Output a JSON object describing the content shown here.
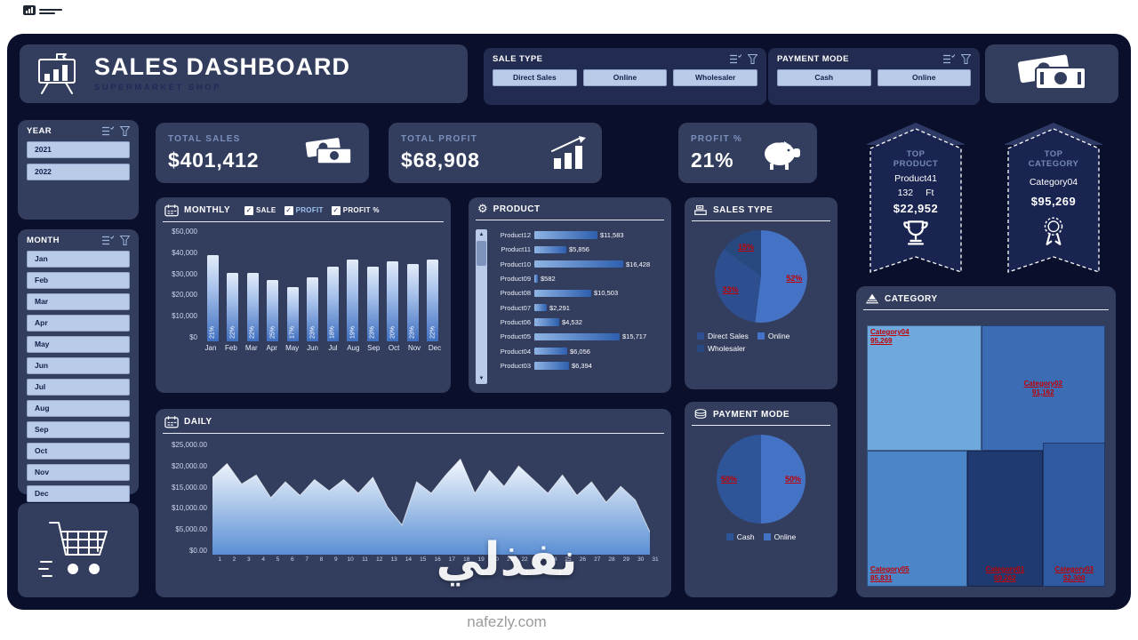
{
  "page": {
    "watermark_main": "نفذلي",
    "watermark_sub": "nafezly.com"
  },
  "header": {
    "title": "SALES DASHBOARD",
    "subtitle": "SUPERMARKET SHOP"
  },
  "slicers": {
    "sale_type": {
      "label": "SALE TYPE",
      "options": [
        "Direct Sales",
        "Online",
        "Wholesaler"
      ]
    },
    "payment_mode": {
      "label": "PAYMENT MODE",
      "options": [
        "Cash",
        "Online"
      ]
    },
    "year": {
      "label": "YEAR",
      "options": [
        "2021",
        "2022"
      ]
    },
    "month": {
      "label": "MONTH",
      "options": [
        "Jan",
        "Feb",
        "Mar",
        "Apr",
        "May",
        "Jun",
        "Jul",
        "Aug",
        "Sep",
        "Oct",
        "Nov",
        "Dec"
      ]
    }
  },
  "kpis": {
    "total_sales": {
      "label": "TOTAL SALES",
      "value": "$401,412"
    },
    "total_profit": {
      "label": "TOTAL PROFIT",
      "value": "$68,908"
    },
    "profit_pct": {
      "label": "PROFIT %",
      "value": "21%"
    }
  },
  "top_product": {
    "title": "TOP PRODUCT",
    "name": "Product41",
    "qty": "132",
    "unit": "Ft",
    "value": "$22,952"
  },
  "top_category": {
    "title": "TOP CATEGORY",
    "name": "Category04",
    "value": "$95,269"
  },
  "panels": {
    "monthly": {
      "title": "MONTHLY",
      "checkboxes": [
        "SALE",
        "PROFIT",
        "PROFIT %"
      ]
    },
    "product": {
      "title": "PRODUCT"
    },
    "sales_type": {
      "title": "SALES TYPE"
    },
    "daily": {
      "title": "DAILY"
    },
    "payment_mode": {
      "title": "PAYMENT MODE"
    },
    "category": {
      "title": "CATEGORY"
    }
  },
  "colors": {
    "accent": "#4472c4",
    "label_red": "#c00000",
    "panel": "#333e5f",
    "background": "#0a102b"
  },
  "chart_data": [
    {
      "id": "monthly",
      "type": "bar",
      "title": "MONTHLY",
      "categories": [
        "Jan",
        "Feb",
        "Mar",
        "Apr",
        "May",
        "Jun",
        "Jul",
        "Aug",
        "Sep",
        "Oct",
        "Nov",
        "Dec"
      ],
      "values": [
        38000,
        30000,
        30000,
        27000,
        24000,
        28000,
        33000,
        36000,
        33000,
        35000,
        34000,
        36000
      ],
      "bar_labels": [
        "21%",
        "22%",
        "22%",
        "25%",
        "17%",
        "23%",
        "18%",
        "19%",
        "23%",
        "20%",
        "23%",
        "22%"
      ],
      "ylim": [
        0,
        50000
      ],
      "yticks": [
        "$50,000",
        "$40,000",
        "$30,000",
        "$20,000",
        "$10,000",
        "$0"
      ]
    },
    {
      "id": "product",
      "type": "bar-horizontal",
      "title": "PRODUCT",
      "categories": [
        "Product12",
        "Product11",
        "Product10",
        "Product09",
        "Product08",
        "Product07",
        "Product06",
        "Product05",
        "Product04",
        "Product03"
      ],
      "values": [
        11583,
        5856,
        16428,
        582,
        10503,
        2291,
        4532,
        15717,
        6056,
        6394
      ],
      "value_labels": [
        "$11,583",
        "$5,856",
        "$16,428",
        "$582",
        "$10,503",
        "$2,291",
        "$4,532",
        "$15,717",
        "$6,056",
        "$6,394"
      ],
      "xlim": [
        0,
        16428
      ]
    },
    {
      "id": "sales_type",
      "type": "pie",
      "title": "SALES TYPE",
      "slices": [
        {
          "label": "Online",
          "pct": 52,
          "text": "52%",
          "color": "#4472c4"
        },
        {
          "label": "Direct Sales",
          "pct": 33,
          "text": "33%",
          "color": "#2e4f8f"
        },
        {
          "label": "Wholesaler",
          "pct": 15,
          "text": "15%",
          "color": "#27497f"
        }
      ],
      "legend": [
        {
          "label": "Direct Sales",
          "color": "#2e4f8f"
        },
        {
          "label": "Online",
          "color": "#4472c4"
        },
        {
          "label": "Wholesaler",
          "color": "#27497f"
        }
      ]
    },
    {
      "id": "daily",
      "type": "area",
      "title": "DAILY",
      "x": [
        "1",
        "2",
        "3",
        "4",
        "5",
        "6",
        "7",
        "8",
        "9",
        "10",
        "11",
        "12",
        "13",
        "14",
        "15",
        "16",
        "17",
        "18",
        "19",
        "20",
        "21",
        "22",
        "23",
        "24",
        "25",
        "26",
        "27",
        "28",
        "29",
        "30",
        "31"
      ],
      "values": [
        17000,
        20000,
        15500,
        17500,
        12500,
        16000,
        13000,
        16500,
        14000,
        16500,
        13500,
        17000,
        10500,
        6500,
        16000,
        13500,
        17500,
        21000,
        13500,
        18500,
        15000,
        19500,
        16500,
        13500,
        17500,
        13000,
        16000,
        11500,
        15000,
        12000,
        5000
      ],
      "ylim": [
        0,
        25000
      ],
      "yticks": [
        "$25,000.00",
        "$20,000.00",
        "$15,000.00",
        "$10,000.00",
        "$5,000.00",
        "$0.00"
      ]
    },
    {
      "id": "payment_mode",
      "type": "pie",
      "title": "PAYMENT MODE",
      "slices": [
        {
          "label": "Online",
          "pct": 50,
          "text": "50%",
          "color": "#4472c4"
        },
        {
          "label": "Cash",
          "pct": 50,
          "text": "50%",
          "color": "#2e5597"
        }
      ],
      "legend": [
        {
          "label": "Cash",
          "color": "#2e5597"
        },
        {
          "label": "Online",
          "color": "#4472c4"
        }
      ]
    },
    {
      "id": "category",
      "type": "treemap",
      "title": "CATEGORY",
      "blocks": [
        {
          "label": "Category04",
          "value": "95,269",
          "color": "#6fa8dc",
          "x": 0,
          "y": 0,
          "w": 48,
          "h": 48,
          "align": "tl"
        },
        {
          "label": "Category02",
          "value": "91,162",
          "color": "#3c6cb4",
          "x": 48,
          "y": 0,
          "w": 52,
          "h": 48,
          "align": "c"
        },
        {
          "label": "Category05",
          "value": "85,831",
          "color": "#4a86c8",
          "x": 0,
          "y": 48,
          "w": 42,
          "h": 52,
          "align": "bl"
        },
        {
          "label": "Category01",
          "value": "69,262",
          "color": "#1f3a70",
          "x": 42,
          "y": 48,
          "w": 32,
          "h": 52,
          "align": "bc"
        },
        {
          "label": "Category03",
          "value": "52,300",
          "color": "#2f5aa0",
          "x": 74,
          "y": 45,
          "w": 26,
          "h": 55,
          "align": "bc"
        }
      ]
    }
  ]
}
